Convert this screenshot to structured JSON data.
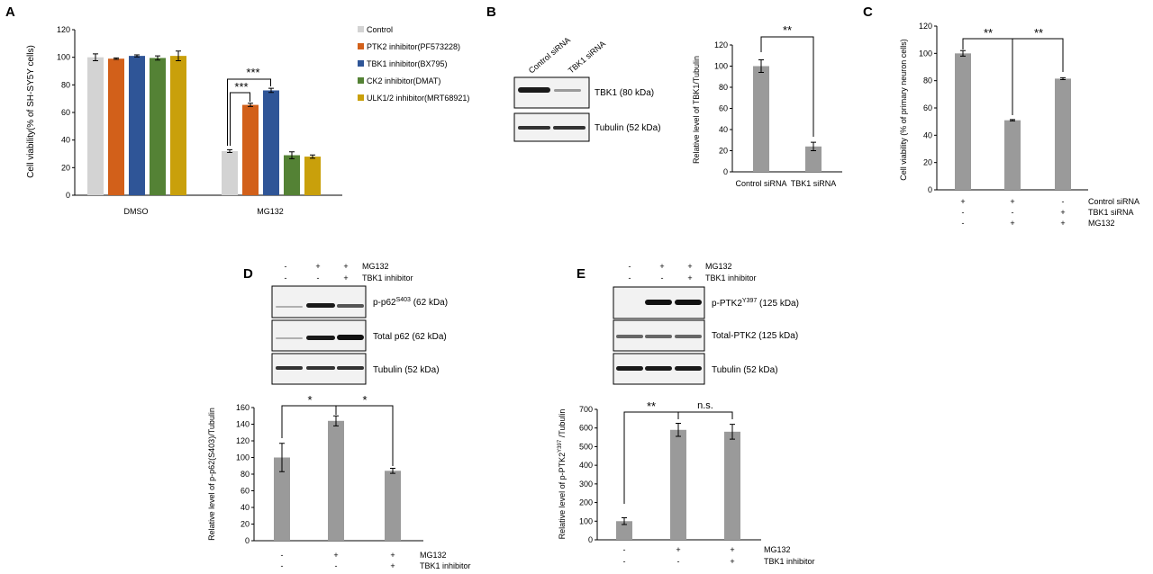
{
  "colors": {
    "grey_bar": "#9a9a9a",
    "control": "#d3d3d3",
    "ptk2": "#d2601a",
    "tbk1": "#2f5597",
    "ck2": "#548235",
    "ulk1": "#c9a00b",
    "blot_bg": "#f2f2f2",
    "band": "#1a1a1a"
  },
  "panels": {
    "A": {
      "letter": "A",
      "ylabel": "Cell viability(% of SH-SY5Y cells)",
      "legend": [
        "Control",
        "PTK2 inhibitor(PF573228)",
        "TBK1 inhibitor(BX795)",
        "CK2 inhibitor(DMAT)",
        "ULK1/2 inhibitor(MRT68921)"
      ],
      "groups": [
        "DMSO",
        "MG132"
      ],
      "significance": [
        "***",
        "***"
      ]
    },
    "B": {
      "letter": "B",
      "lanes": [
        "Control siRNA",
        "TBK1 siRNA"
      ],
      "blots": [
        "TBK1 (80 kDa)",
        "Tubulin (52 kDa)"
      ],
      "ylabel": "Relative level of TBK1/Tubulin",
      "significance": [
        "**"
      ]
    },
    "C": {
      "letter": "C",
      "ylabel": "Cell viability (% of primary neuron cells)",
      "conditions": [
        {
          "name": "Control siRNA",
          "signs": [
            "+",
            "+",
            "-"
          ]
        },
        {
          "name": "TBK1 siRNA",
          "signs": [
            "-",
            "-",
            "+"
          ]
        },
        {
          "name": "MG132",
          "signs": [
            "-",
            "+",
            "+"
          ]
        }
      ],
      "significance": [
        "**",
        "**"
      ]
    },
    "D": {
      "letter": "D",
      "conditions": [
        {
          "name": "MG132",
          "signs": [
            "-",
            "+",
            "+"
          ]
        },
        {
          "name": "TBK1 inhibitor",
          "signs": [
            "-",
            "-",
            "+"
          ]
        }
      ],
      "blots": [
        {
          "pre": "p-p62",
          "sup": "S403",
          "post": " (62 kDa)"
        },
        {
          "pre": "Total p62 (62 kDa)",
          "sup": "",
          "post": ""
        },
        {
          "pre": "Tubulin (52 kDa)",
          "sup": "",
          "post": ""
        }
      ],
      "ylabel": "Relative level of p-p62(S403)/Tubulin",
      "significance": [
        "*",
        "*"
      ]
    },
    "E": {
      "letter": "E",
      "conditions": [
        {
          "name": "MG132",
          "signs": [
            "-",
            "+",
            "+"
          ]
        },
        {
          "name": "TBK1 inhibitor",
          "signs": [
            "-",
            "-",
            "+"
          ]
        }
      ],
      "blots": [
        {
          "pre": "p-PTK2",
          "sup": "Y397",
          "post": " (125 kDa)"
        },
        {
          "pre": "Total-PTK2 (125 kDa)",
          "sup": "",
          "post": ""
        },
        {
          "pre": "Tubulin (52 kDa)",
          "sup": "",
          "post": ""
        }
      ],
      "ylabel_pre": "Relative level of p-PTK2",
      "ylabel_sup": "Y397",
      "ylabel_post": " /Tubulin",
      "significance": [
        "**",
        "n.s."
      ]
    }
  },
  "chart_data": [
    {
      "panel": "A",
      "type": "bar",
      "categories": [
        "DMSO",
        "MG132"
      ],
      "series": [
        {
          "name": "Control",
          "values": [
            100,
            32
          ],
          "errors": [
            2.5,
            1
          ]
        },
        {
          "name": "PTK2 inhibitor(PF573228)",
          "values": [
            99,
            65.5
          ],
          "errors": [
            0.5,
            1.2
          ]
        },
        {
          "name": "TBK1 inhibitor(BX795)",
          "values": [
            101,
            76
          ],
          "errors": [
            0.7,
            1.5
          ]
        },
        {
          "name": "CK2 inhibitor(DMAT)",
          "values": [
            99.5,
            29
          ],
          "errors": [
            1.5,
            2.5
          ]
        },
        {
          "name": "ULK1/2 inhibitor(MRT68921)",
          "values": [
            101,
            28
          ],
          "errors": [
            3.5,
            1.2
          ]
        }
      ],
      "ylim": [
        0,
        120
      ],
      "yticks": [
        0,
        20,
        40,
        60,
        80,
        100,
        120
      ],
      "ylabel": "Cell viability(% of SH-SY5Y cells)",
      "legend_position": "right"
    },
    {
      "panel": "B",
      "type": "bar",
      "categories": [
        "Control siRNA",
        "TBK1 siRNA"
      ],
      "values": [
        100,
        24
      ],
      "errors": [
        6,
        4
      ],
      "ylim": [
        0,
        120
      ],
      "yticks": [
        0,
        20,
        40,
        60,
        80,
        100,
        120
      ],
      "ylabel": "Relative level of TBK1/Tubulin"
    },
    {
      "panel": "C",
      "type": "bar",
      "categories": [
        "1",
        "2",
        "3"
      ],
      "values": [
        100,
        51,
        81.5
      ],
      "errors": [
        2,
        0.5,
        0.7
      ],
      "ylim": [
        0,
        120
      ],
      "yticks": [
        0,
        20,
        40,
        60,
        80,
        100,
        120
      ],
      "ylabel": "Cell viability (% of primary neuron cells)"
    },
    {
      "panel": "D",
      "type": "bar",
      "categories": [
        "1",
        "2",
        "3"
      ],
      "values": [
        100,
        144,
        84
      ],
      "errors": [
        17,
        6,
        3
      ],
      "ylim": [
        0,
        160
      ],
      "yticks": [
        0,
        20,
        40,
        60,
        80,
        100,
        120,
        140,
        160
      ],
      "ylabel": "Relative level of p-p62(S403)/Tubulin"
    },
    {
      "panel": "E",
      "type": "bar",
      "categories": [
        "1",
        "2",
        "3"
      ],
      "values": [
        100,
        590,
        580
      ],
      "errors": [
        18,
        35,
        40
      ],
      "ylim": [
        0,
        700
      ],
      "yticks": [
        0,
        100,
        200,
        300,
        400,
        500,
        600,
        700
      ],
      "ylabel": "Relative level of p-PTK2Y397 /Tubulin"
    }
  ]
}
